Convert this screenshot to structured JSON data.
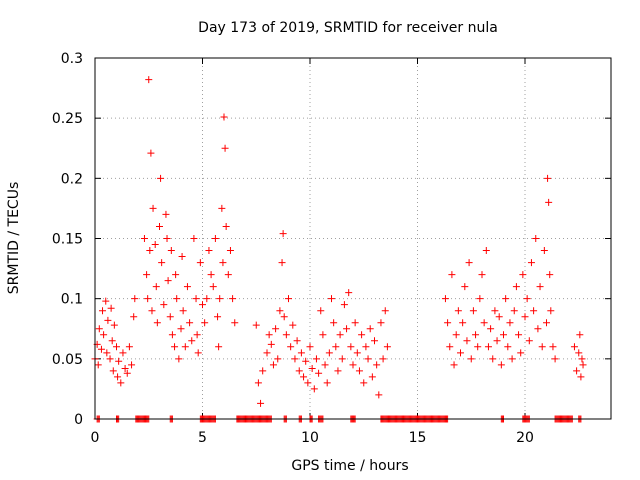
{
  "chart_data": {
    "type": "scatter",
    "title": "Day 173 of 2019, SRMTID for receiver nula",
    "xlabel": "GPS time / hours",
    "ylabel": "SRMTID / TECUs",
    "xlim": [
      0,
      24
    ],
    "ylim": [
      0,
      0.3
    ],
    "grid": true,
    "marker": "+",
    "colors": {
      "points": "#ff0000",
      "grid": "#a0a0a0",
      "axes": "#000000"
    },
    "x_ticks": [
      {
        "value": 0,
        "label": "0"
      },
      {
        "value": 5,
        "label": "5"
      },
      {
        "value": 10,
        "label": "10"
      },
      {
        "value": 15,
        "label": "15"
      },
      {
        "value": 20,
        "label": "20"
      }
    ],
    "y_ticks": [
      {
        "value": 0,
        "label": "0"
      },
      {
        "value": 0.05,
        "label": "0.05"
      },
      {
        "value": 0.1,
        "label": "0.1"
      },
      {
        "value": 0.15,
        "label": "0.15"
      },
      {
        "value": 0.2,
        "label": "0.2"
      },
      {
        "value": 0.25,
        "label": "0.25"
      },
      {
        "value": 0.3,
        "label": "0.3"
      }
    ],
    "points": [
      [
        0.0,
        0.05
      ],
      [
        0.1,
        0.062
      ],
      [
        0.15,
        0.045
      ],
      [
        0.2,
        0.075
      ],
      [
        0.3,
        0.058
      ],
      [
        0.35,
        0.09
      ],
      [
        0.4,
        0.07
      ],
      [
        0.5,
        0.098
      ],
      [
        0.55,
        0.055
      ],
      [
        0.6,
        0.082
      ],
      [
        0.7,
        0.05
      ],
      [
        0.75,
        0.092
      ],
      [
        0.8,
        0.065
      ],
      [
        0.85,
        0.04
      ],
      [
        0.9,
        0.078
      ],
      [
        1.0,
        0.06
      ],
      [
        1.05,
        0.035
      ],
      [
        1.1,
        0.048
      ],
      [
        1.2,
        0.03
      ],
      [
        1.3,
        0.055
      ],
      [
        1.4,
        0.042
      ],
      [
        1.5,
        0.038
      ],
      [
        1.6,
        0.06
      ],
      [
        1.7,
        0.045
      ],
      [
        1.8,
        0.085
      ],
      [
        1.85,
        0.1
      ],
      [
        2.3,
        0.15
      ],
      [
        2.4,
        0.12
      ],
      [
        2.45,
        0.1
      ],
      [
        2.5,
        0.282
      ],
      [
        2.55,
        0.14
      ],
      [
        2.6,
        0.221
      ],
      [
        2.65,
        0.09
      ],
      [
        2.7,
        0.175
      ],
      [
        2.8,
        0.145
      ],
      [
        2.85,
        0.11
      ],
      [
        2.9,
        0.08
      ],
      [
        3.0,
        0.16
      ],
      [
        3.05,
        0.2
      ],
      [
        3.1,
        0.13
      ],
      [
        3.2,
        0.095
      ],
      [
        3.3,
        0.17
      ],
      [
        3.35,
        0.15
      ],
      [
        3.4,
        0.115
      ],
      [
        3.5,
        0.085
      ],
      [
        3.55,
        0.14
      ],
      [
        3.6,
        0.07
      ],
      [
        3.7,
        0.06
      ],
      [
        3.75,
        0.12
      ],
      [
        3.8,
        0.1
      ],
      [
        3.9,
        0.05
      ],
      [
        4.0,
        0.075
      ],
      [
        4.05,
        0.135
      ],
      [
        4.1,
        0.09
      ],
      [
        4.2,
        0.06
      ],
      [
        4.3,
        0.11
      ],
      [
        4.4,
        0.08
      ],
      [
        4.5,
        0.065
      ],
      [
        4.6,
        0.15
      ],
      [
        4.7,
        0.1
      ],
      [
        4.75,
        0.07
      ],
      [
        4.8,
        0.055
      ],
      [
        4.9,
        0.13
      ],
      [
        5.0,
        0.095
      ],
      [
        5.1,
        0.08
      ],
      [
        5.2,
        0.1
      ],
      [
        5.3,
        0.14
      ],
      [
        5.4,
        0.12
      ],
      [
        5.5,
        0.11
      ],
      [
        5.6,
        0.15
      ],
      [
        5.7,
        0.085
      ],
      [
        5.75,
        0.06
      ],
      [
        5.8,
        0.1
      ],
      [
        5.9,
        0.175
      ],
      [
        5.95,
        0.13
      ],
      [
        6.0,
        0.251
      ],
      [
        6.05,
        0.225
      ],
      [
        6.1,
        0.16
      ],
      [
        6.2,
        0.12
      ],
      [
        6.3,
        0.14
      ],
      [
        6.4,
        0.1
      ],
      [
        6.5,
        0.08
      ],
      [
        7.5,
        0.078
      ],
      [
        7.6,
        0.03
      ],
      [
        7.7,
        0.013
      ],
      [
        7.8,
        0.04
      ],
      [
        8.0,
        0.055
      ],
      [
        8.1,
        0.07
      ],
      [
        8.2,
        0.062
      ],
      [
        8.3,
        0.045
      ],
      [
        8.4,
        0.075
      ],
      [
        8.5,
        0.05
      ],
      [
        8.6,
        0.09
      ],
      [
        8.7,
        0.13
      ],
      [
        8.75,
        0.154
      ],
      [
        8.8,
        0.085
      ],
      [
        8.9,
        0.07
      ],
      [
        9.0,
        0.1
      ],
      [
        9.1,
        0.06
      ],
      [
        9.2,
        0.078
      ],
      [
        9.3,
        0.05
      ],
      [
        9.4,
        0.065
      ],
      [
        9.5,
        0.04
      ],
      [
        9.6,
        0.055
      ],
      [
        9.7,
        0.035
      ],
      [
        9.8,
        0.048
      ],
      [
        9.9,
        0.03
      ],
      [
        10.0,
        0.06
      ],
      [
        10.1,
        0.042
      ],
      [
        10.2,
        0.025
      ],
      [
        10.3,
        0.05
      ],
      [
        10.4,
        0.038
      ],
      [
        10.5,
        0.09
      ],
      [
        10.6,
        0.07
      ],
      [
        10.7,
        0.045
      ],
      [
        10.8,
        0.03
      ],
      [
        10.9,
        0.055
      ],
      [
        11.0,
        0.1
      ],
      [
        11.1,
        0.08
      ],
      [
        11.2,
        0.06
      ],
      [
        11.3,
        0.04
      ],
      [
        11.4,
        0.07
      ],
      [
        11.5,
        0.05
      ],
      [
        11.6,
        0.095
      ],
      [
        11.7,
        0.075
      ],
      [
        11.8,
        0.105
      ],
      [
        11.9,
        0.06
      ],
      [
        12.0,
        0.045
      ],
      [
        12.1,
        0.08
      ],
      [
        12.2,
        0.055
      ],
      [
        12.3,
        0.04
      ],
      [
        12.4,
        0.07
      ],
      [
        12.5,
        0.03
      ],
      [
        12.6,
        0.06
      ],
      [
        12.7,
        0.05
      ],
      [
        12.8,
        0.075
      ],
      [
        12.9,
        0.035
      ],
      [
        13.0,
        0.065
      ],
      [
        13.1,
        0.045
      ],
      [
        13.2,
        0.02
      ],
      [
        13.3,
        0.08
      ],
      [
        13.4,
        0.05
      ],
      [
        13.5,
        0.09
      ],
      [
        13.6,
        0.06
      ],
      [
        16.3,
        0.1
      ],
      [
        16.4,
        0.08
      ],
      [
        16.5,
        0.06
      ],
      [
        16.6,
        0.12
      ],
      [
        16.7,
        0.045
      ],
      [
        16.8,
        0.07
      ],
      [
        16.9,
        0.09
      ],
      [
        17.0,
        0.055
      ],
      [
        17.1,
        0.08
      ],
      [
        17.2,
        0.11
      ],
      [
        17.3,
        0.065
      ],
      [
        17.4,
        0.13
      ],
      [
        17.5,
        0.05
      ],
      [
        17.6,
        0.09
      ],
      [
        17.7,
        0.07
      ],
      [
        17.8,
        0.06
      ],
      [
        17.9,
        0.1
      ],
      [
        18.0,
        0.12
      ],
      [
        18.1,
        0.08
      ],
      [
        18.2,
        0.14
      ],
      [
        18.3,
        0.06
      ],
      [
        18.4,
        0.075
      ],
      [
        18.5,
        0.05
      ],
      [
        18.6,
        0.09
      ],
      [
        18.7,
        0.065
      ],
      [
        18.8,
        0.085
      ],
      [
        18.9,
        0.045
      ],
      [
        19.0,
        0.07
      ],
      [
        19.1,
        0.1
      ],
      [
        19.2,
        0.06
      ],
      [
        19.3,
        0.08
      ],
      [
        19.4,
        0.05
      ],
      [
        19.5,
        0.09
      ],
      [
        19.6,
        0.11
      ],
      [
        19.7,
        0.07
      ],
      [
        19.8,
        0.055
      ],
      [
        19.9,
        0.12
      ],
      [
        20.0,
        0.085
      ],
      [
        20.1,
        0.1
      ],
      [
        20.2,
        0.065
      ],
      [
        20.3,
        0.13
      ],
      [
        20.4,
        0.09
      ],
      [
        20.5,
        0.15
      ],
      [
        20.6,
        0.075
      ],
      [
        20.7,
        0.11
      ],
      [
        20.8,
        0.06
      ],
      [
        20.9,
        0.14
      ],
      [
        21.0,
        0.08
      ],
      [
        21.05,
        0.2
      ],
      [
        21.1,
        0.18
      ],
      [
        21.15,
        0.12
      ],
      [
        21.2,
        0.09
      ],
      [
        21.3,
        0.06
      ],
      [
        21.4,
        0.05
      ],
      [
        22.3,
        0.06
      ],
      [
        22.4,
        0.04
      ],
      [
        22.5,
        0.055
      ],
      [
        22.55,
        0.07
      ],
      [
        22.6,
        0.035
      ],
      [
        22.65,
        0.05
      ],
      [
        22.7,
        0.045
      ]
    ],
    "zero_segments": [
      [
        0.1,
        0.2
      ],
      [
        1.0,
        1.1
      ],
      [
        1.9,
        2.5
      ],
      [
        3.5,
        3.6
      ],
      [
        4.9,
        5.6
      ],
      [
        6.6,
        8.2
      ],
      [
        8.8,
        8.9
      ],
      [
        9.5,
        9.6
      ],
      [
        10.0,
        10.1
      ],
      [
        10.4,
        10.6
      ],
      [
        11.9,
        12.1
      ],
      [
        13.3,
        16.4
      ],
      [
        18.9,
        19.0
      ],
      [
        19.9,
        20.2
      ],
      [
        21.4,
        22.2
      ],
      [
        22.5,
        22.6
      ]
    ]
  }
}
